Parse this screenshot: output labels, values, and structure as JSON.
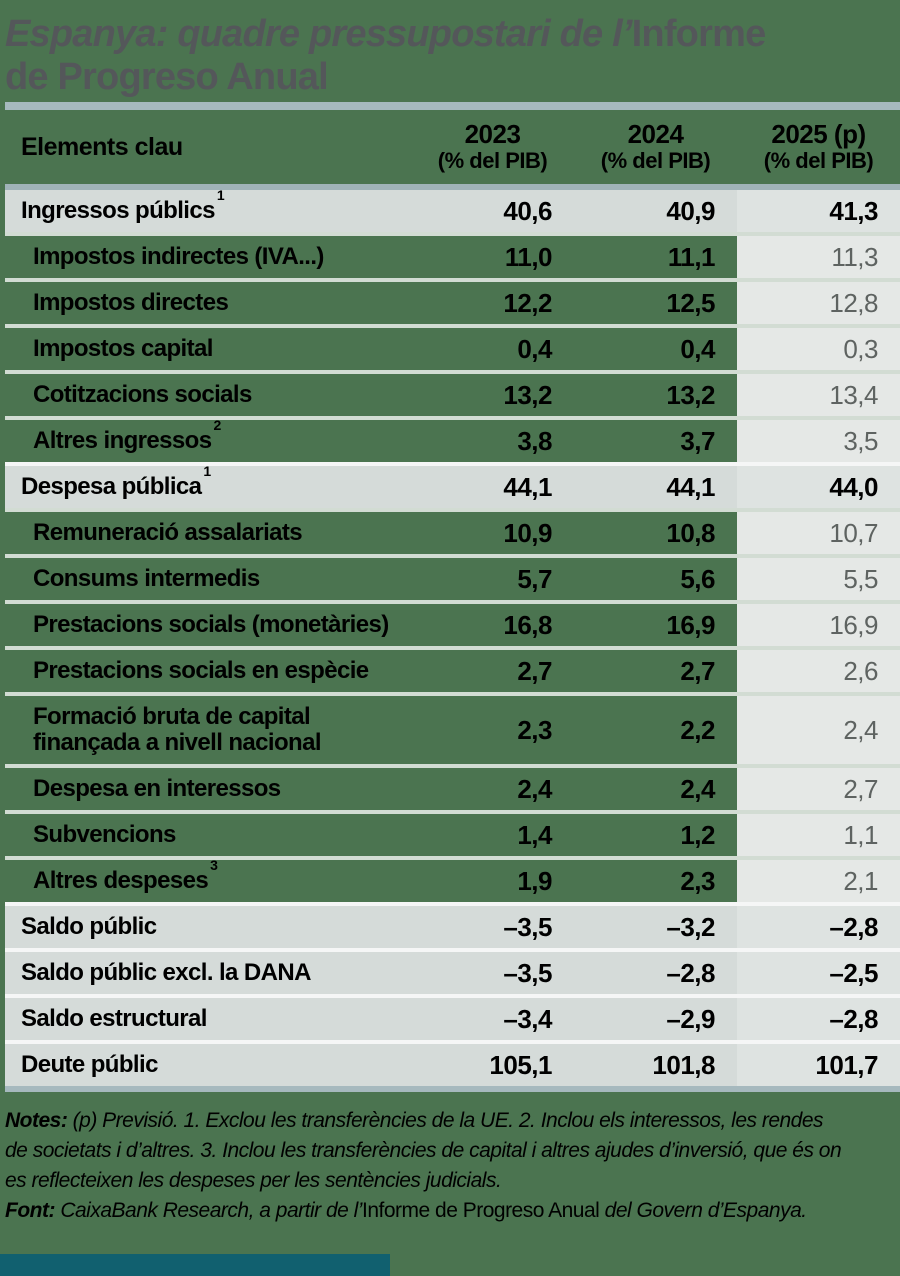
{
  "colors": {
    "page_background": "#4b7450",
    "rule_steel": "#a6b9be",
    "band_gray": "#d5dbd9",
    "forecast_cell_gray": "#e5e8e6",
    "title_gray": "#54575a",
    "forecast_value_gray": "#5e6361",
    "footer_bar_teal": "#11606f"
  },
  "title": {
    "line1_italic": "Espanya: quadre pressupostari de l’",
    "line1_upright": "Informe",
    "line2_upright": "de Progreso Anual"
  },
  "table": {
    "header": {
      "label": "Elements clau",
      "cols": [
        {
          "year": "2023",
          "unit": "(% del PIB)"
        },
        {
          "year": "2024",
          "unit": "(% del PIB)"
        },
        {
          "year": "2025 (p)",
          "unit": "(% del PIB)"
        }
      ]
    },
    "rows": [
      {
        "label": "Ingressos públics",
        "sup": "1",
        "v2023": "40,6",
        "v2024": "40,9",
        "v2025": "41,3",
        "band": true
      },
      {
        "label": "Impostos indirectes (IVA...)",
        "sup": "",
        "v2023": "11,0",
        "v2024": "11,1",
        "v2025": "11,3",
        "band": false
      },
      {
        "label": "Impostos directes",
        "sup": "",
        "v2023": "12,2",
        "v2024": "12,5",
        "v2025": "12,8",
        "band": false
      },
      {
        "label": "Impostos capital",
        "sup": "",
        "v2023": "0,4",
        "v2024": "0,4",
        "v2025": "0,3",
        "band": false
      },
      {
        "label": "Cotitzacions socials",
        "sup": "",
        "v2023": "13,2",
        "v2024": "13,2",
        "v2025": "13,4",
        "band": false
      },
      {
        "label": "Altres ingressos",
        "sup": "2",
        "v2023": "3,8",
        "v2024": "3,7",
        "v2025": "3,5",
        "band": false
      },
      {
        "label": "Despesa pública",
        "sup": "1",
        "v2023": "44,1",
        "v2024": "44,1",
        "v2025": "44,0",
        "band": true
      },
      {
        "label": "Remuneració assalariats",
        "sup": "",
        "v2023": "10,9",
        "v2024": "10,8",
        "v2025": "10,7",
        "band": false
      },
      {
        "label": "Consums intermedis",
        "sup": "",
        "v2023": "5,7",
        "v2024": "5,6",
        "v2025": "5,5",
        "band": false
      },
      {
        "label": "Prestacions socials (monetàries)",
        "sup": "",
        "v2023": "16,8",
        "v2024": "16,9",
        "v2025": "16,9",
        "band": false
      },
      {
        "label": "Prestacions socials en espècie",
        "sup": "",
        "v2023": "2,7",
        "v2024": "2,7",
        "v2025": "2,6",
        "band": false
      },
      {
        "label": "Formació bruta de capital\nfinançada a nivell nacional",
        "sup": "",
        "v2023": "2,3",
        "v2024": "2,2",
        "v2025": "2,4",
        "band": false,
        "tall": true
      },
      {
        "label": "Despesa en interessos",
        "sup": "",
        "v2023": "2,4",
        "v2024": "2,4",
        "v2025": "2,7",
        "band": false
      },
      {
        "label": "Subvencions",
        "sup": "",
        "v2023": "1,4",
        "v2024": "1,2",
        "v2025": "1,1",
        "band": false
      },
      {
        "label": "Altres despeses",
        "sup": "3",
        "v2023": "1,9",
        "v2024": "2,3",
        "v2025": "2,1",
        "band": false
      },
      {
        "label": "Saldo públic",
        "sup": "",
        "v2023": "–3,5",
        "v2024": "–3,2",
        "v2025": "–2,8",
        "band": true
      },
      {
        "label": "Saldo públic excl. la DANA",
        "sup": "",
        "v2023": "–3,5",
        "v2024": "–2,8",
        "v2025": "–2,5",
        "band": true
      },
      {
        "label": "Saldo estructural",
        "sup": "",
        "v2023": "–3,4",
        "v2024": "–2,9",
        "v2025": "–2,8",
        "band": true
      },
      {
        "label": "Deute públic",
        "sup": "",
        "v2023": "105,1",
        "v2024": "101,8",
        "v2025": "101,7",
        "band": true
      }
    ]
  },
  "notes": {
    "label": "Notes:",
    "line1_rest": " (p) Previsió. 1. Exclou les transferències de la UE. 2. Inclou els interessos, les rendes",
    "line2": "de societats i d’altres. 3. Inclou les transferències de capital i altres ajudes d’inversió, que és on",
    "line3": "es reflecteixen les despeses per les sentències judicials.",
    "font_label": "Font:",
    "font_part1": " CaixaBank Research, a partir de l’",
    "font_upright": "Informe de Progreso Anual",
    "font_part2": " del Govern d’Espanya."
  },
  "chart_data": {
    "type": "table",
    "title": "Espanya: quadre pressupostari de l’Informe de Progreso Anual",
    "columns": [
      "Elements clau",
      "2023 (% del PIB)",
      "2024 (% del PIB)",
      "2025 (p) (% del PIB)"
    ],
    "rows": [
      {
        "element": "Ingressos públics (1)",
        "y2023": 40.6,
        "y2024": 40.9,
        "y2025": 41.3
      },
      {
        "element": "Impostos indirectes (IVA...)",
        "y2023": 11.0,
        "y2024": 11.1,
        "y2025": 11.3
      },
      {
        "element": "Impostos directes",
        "y2023": 12.2,
        "y2024": 12.5,
        "y2025": 12.8
      },
      {
        "element": "Impostos capital",
        "y2023": 0.4,
        "y2024": 0.4,
        "y2025": 0.3
      },
      {
        "element": "Cotitzacions socials",
        "y2023": 13.2,
        "y2024": 13.2,
        "y2025": 13.4
      },
      {
        "element": "Altres ingressos (2)",
        "y2023": 3.8,
        "y2024": 3.7,
        "y2025": 3.5
      },
      {
        "element": "Despesa pública (1)",
        "y2023": 44.1,
        "y2024": 44.1,
        "y2025": 44.0
      },
      {
        "element": "Remuneració assalariats",
        "y2023": 10.9,
        "y2024": 10.8,
        "y2025": 10.7
      },
      {
        "element": "Consums intermedis",
        "y2023": 5.7,
        "y2024": 5.6,
        "y2025": 5.5
      },
      {
        "element": "Prestacions socials (monetàries)",
        "y2023": 16.8,
        "y2024": 16.9,
        "y2025": 16.9
      },
      {
        "element": "Prestacions socials en espècie",
        "y2023": 2.7,
        "y2024": 2.7,
        "y2025": 2.6
      },
      {
        "element": "Formació bruta de capital finançada a nivell nacional",
        "y2023": 2.3,
        "y2024": 2.2,
        "y2025": 2.4
      },
      {
        "element": "Despesa en interessos",
        "y2023": 2.4,
        "y2024": 2.4,
        "y2025": 2.7
      },
      {
        "element": "Subvencions",
        "y2023": 1.4,
        "y2024": 1.2,
        "y2025": 1.1
      },
      {
        "element": "Altres despeses (3)",
        "y2023": 1.9,
        "y2024": 2.3,
        "y2025": 2.1
      },
      {
        "element": "Saldo públic",
        "y2023": -3.5,
        "y2024": -3.2,
        "y2025": -2.8
      },
      {
        "element": "Saldo públic excl. la DANA",
        "y2023": -3.5,
        "y2024": -2.8,
        "y2025": -2.5
      },
      {
        "element": "Saldo estructural",
        "y2023": -3.4,
        "y2024": -2.9,
        "y2025": -2.8
      },
      {
        "element": "Deute públic",
        "y2023": 105.1,
        "y2024": 101.8,
        "y2025": 101.7
      }
    ]
  }
}
